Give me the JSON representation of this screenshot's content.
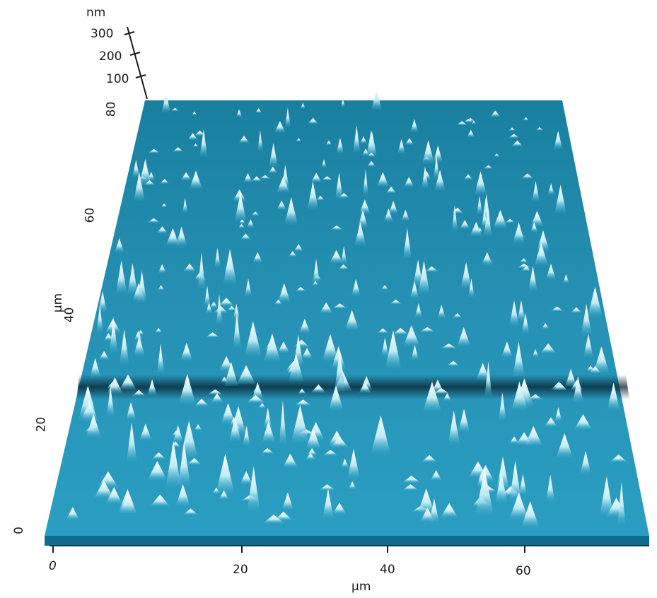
{
  "image": {
    "kind": "AFM 3D height topography",
    "colors": {
      "base": "#1e8fb0",
      "dark": "#0a3b52",
      "peak": "#ffffff",
      "edge": "#0f6d8c"
    }
  },
  "z_axis": {
    "unit": "nm",
    "ticks": [
      "100",
      "200",
      "300"
    ]
  },
  "y_axis": {
    "unit": "µm",
    "ticks": [
      "0",
      "20",
      "40",
      "60",
      "80"
    ]
  },
  "x_axis": {
    "unit": "µm",
    "ticks": [
      "0",
      "20",
      "40",
      "60"
    ]
  }
}
